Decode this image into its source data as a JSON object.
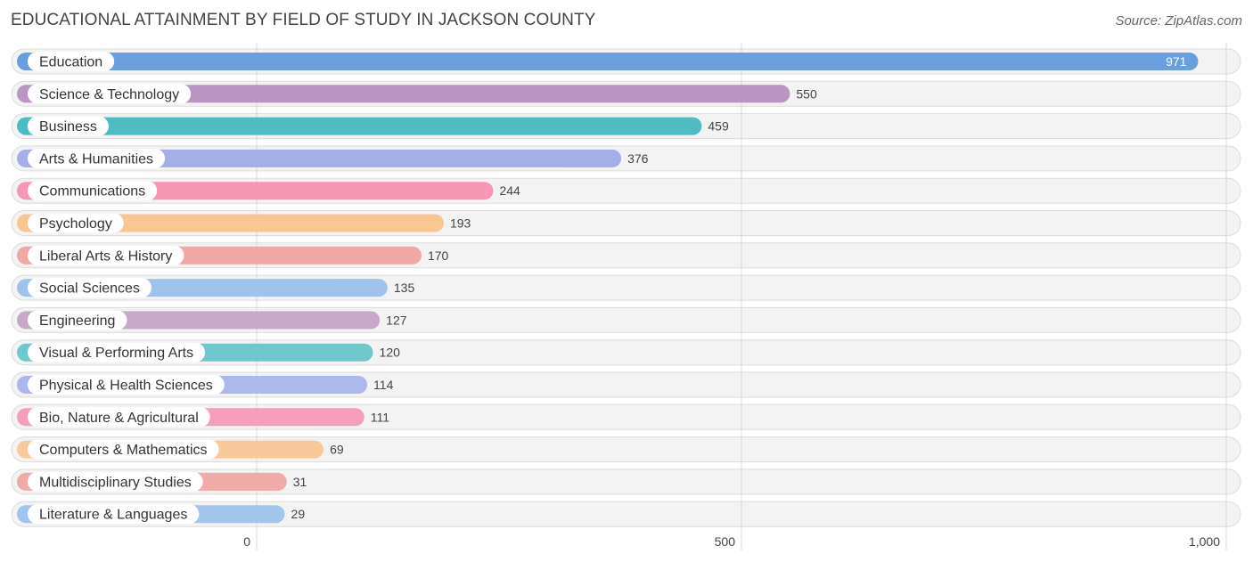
{
  "chart_data": {
    "type": "bar",
    "orientation": "horizontal",
    "title": "EDUCATIONAL ATTAINMENT BY FIELD OF STUDY IN JACKSON COUNTY",
    "source": "Source: ZipAtlas.com",
    "categories": [
      "Education",
      "Science & Technology",
      "Business",
      "Arts & Humanities",
      "Communications",
      "Psychology",
      "Liberal Arts & History",
      "Social Sciences",
      "Engineering",
      "Visual & Performing Arts",
      "Physical & Health Sciences",
      "Bio, Nature & Agricultural",
      "Computers & Mathematics",
      "Multidisciplinary Studies",
      "Literature & Languages"
    ],
    "values": [
      971,
      550,
      459,
      376,
      244,
      193,
      170,
      135,
      127,
      120,
      114,
      111,
      69,
      31,
      29
    ],
    "colors": [
      "#6a9fdf",
      "#bb96c5",
      "#4fbcc4",
      "#a5aee8",
      "#f797b5",
      "#f9c690",
      "#efa8a6",
      "#9fc3ea",
      "#c9a7cd",
      "#6ec8cc",
      "#acb7ea",
      "#f59dba",
      "#f9c99a",
      "#f0aaa8",
      "#a2c5ec"
    ],
    "xlim": [
      0,
      1000
    ],
    "xticks": [
      0,
      500,
      1000
    ],
    "xtick_labels": [
      "0",
      "500",
      "1,000"
    ],
    "grid": true
  }
}
